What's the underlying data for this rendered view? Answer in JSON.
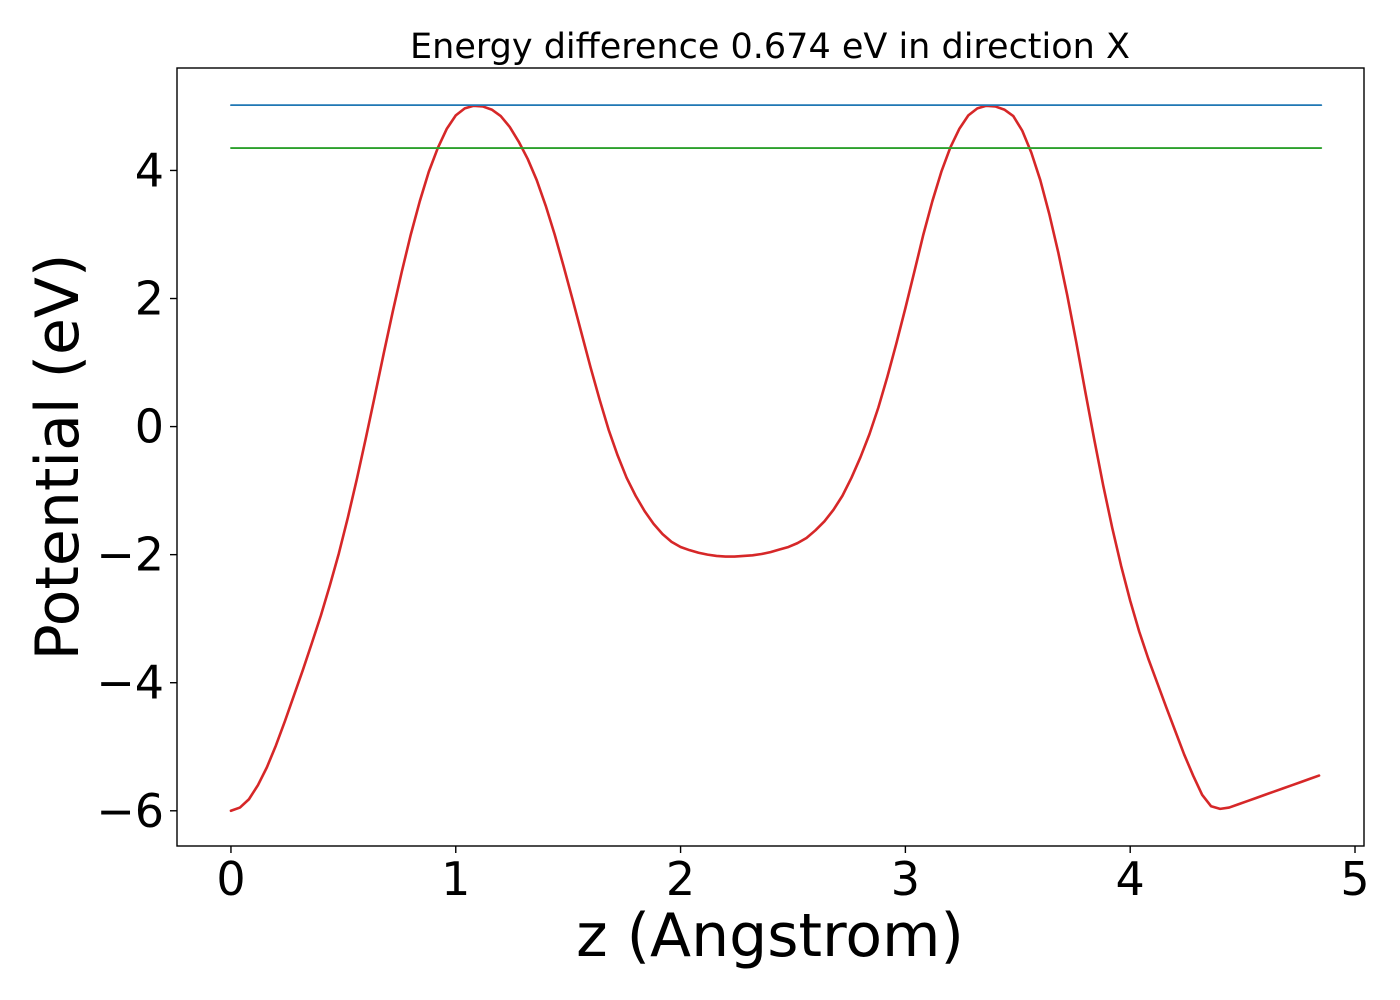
{
  "chart_data": {
    "type": "line",
    "title": "Energy difference 0.674 eV in direction X",
    "xlabel": "z (Angstrom)",
    "ylabel": "Potential (eV)",
    "xlim": [
      -0.24,
      5.04
    ],
    "ylim": [
      -6.55,
      5.6
    ],
    "grid": false,
    "x_ticks": [
      0,
      1,
      2,
      3,
      4,
      5
    ],
    "x_tick_labels": [
      "0",
      "1",
      "2",
      "3",
      "4",
      "5"
    ],
    "y_ticks": [
      -6,
      -4,
      -2,
      0,
      2,
      4
    ],
    "y_tick_labels": [
      "−6",
      "−4",
      "−2",
      "0",
      "2",
      "4"
    ],
    "series": [
      {
        "color": "#d62728",
        "x": [
          0.0,
          0.04,
          0.08,
          0.12,
          0.16,
          0.2,
          0.24,
          0.28,
          0.32,
          0.36,
          0.4,
          0.44,
          0.48,
          0.52,
          0.56,
          0.6,
          0.64,
          0.68,
          0.72,
          0.76,
          0.8,
          0.84,
          0.88,
          0.92,
          0.96,
          1.0,
          1.04,
          1.08,
          1.12,
          1.16,
          1.2,
          1.24,
          1.28,
          1.32,
          1.36,
          1.4,
          1.44,
          1.48,
          1.52,
          1.56,
          1.6,
          1.64,
          1.68,
          1.72,
          1.76,
          1.8,
          1.84,
          1.88,
          1.92,
          1.96,
          2.0,
          2.04,
          2.08,
          2.12,
          2.16,
          2.2,
          2.24,
          2.28,
          2.32,
          2.36,
          2.4,
          2.44,
          2.48,
          2.52,
          2.56,
          2.6,
          2.64,
          2.68,
          2.72,
          2.76,
          2.8,
          2.84,
          2.88,
          2.92,
          2.96,
          3.0,
          3.04,
          3.08,
          3.12,
          3.16,
          3.2,
          3.24,
          3.28,
          3.32,
          3.36,
          3.4,
          3.44,
          3.48,
          3.52,
          3.56,
          3.6,
          3.64,
          3.68,
          3.72,
          3.76,
          3.8,
          3.84,
          3.88,
          3.92,
          3.96,
          4.0,
          4.04,
          4.08,
          4.12,
          4.16,
          4.2,
          4.24,
          4.28,
          4.32,
          4.36,
          4.4,
          4.44,
          4.48,
          4.52,
          4.56,
          4.6,
          4.64,
          4.68,
          4.72,
          4.76,
          4.8,
          4.84
        ],
        "y": [
          -6.0,
          -5.95,
          -5.82,
          -5.6,
          -5.32,
          -4.98,
          -4.6,
          -4.2,
          -3.8,
          -3.38,
          -2.95,
          -2.48,
          -1.98,
          -1.42,
          -0.82,
          -0.18,
          0.48,
          1.15,
          1.8,
          2.42,
          3.0,
          3.52,
          3.98,
          4.35,
          4.65,
          4.86,
          4.97,
          5.01,
          5.0,
          4.95,
          4.85,
          4.68,
          4.45,
          4.18,
          3.85,
          3.45,
          3.0,
          2.5,
          1.98,
          1.45,
          0.92,
          0.42,
          -0.05,
          -0.45,
          -0.8,
          -1.08,
          -1.32,
          -1.52,
          -1.68,
          -1.8,
          -1.88,
          -1.93,
          -1.97,
          -2.0,
          -2.02,
          -2.03,
          -2.03,
          -2.02,
          -2.01,
          -1.99,
          -1.96,
          -1.92,
          -1.88,
          -1.82,
          -1.74,
          -1.62,
          -1.48,
          -1.3,
          -1.08,
          -0.8,
          -0.48,
          -0.12,
          0.3,
          0.78,
          1.3,
          1.85,
          2.42,
          3.0,
          3.52,
          3.98,
          4.36,
          4.65,
          4.86,
          4.97,
          5.01,
          5.0,
          4.95,
          4.85,
          4.62,
          4.28,
          3.85,
          3.32,
          2.72,
          2.05,
          1.32,
          0.55,
          -0.2,
          -0.92,
          -1.58,
          -2.18,
          -2.72,
          -3.2,
          -3.62,
          -4.0,
          -4.38,
          -4.75,
          -5.12,
          -5.45,
          -5.75,
          -5.93,
          -5.97,
          -5.95,
          -5.9,
          -5.85,
          -5.8,
          -5.75,
          -5.7,
          -5.65,
          -5.6,
          -5.55,
          -5.5,
          -5.45
        ]
      },
      {
        "color": "#1f77b4",
        "x": [
          0.0,
          4.85
        ],
        "y": [
          5.02,
          5.02
        ]
      },
      {
        "color": "#2ca02c",
        "x": [
          0.0,
          4.85
        ],
        "y": [
          4.35,
          4.35
        ]
      }
    ]
  }
}
